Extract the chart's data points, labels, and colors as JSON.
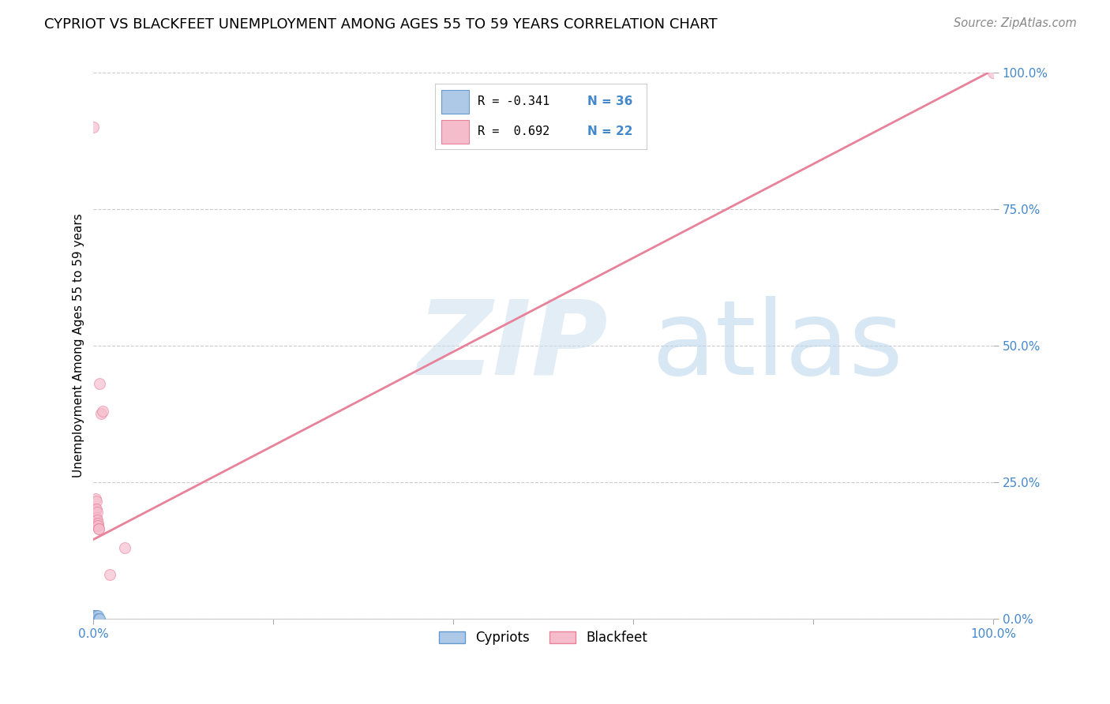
{
  "title": "CYPRIOT VS BLACKFEET UNEMPLOYMENT AMONG AGES 55 TO 59 YEARS CORRELATION CHART",
  "source": "Source: ZipAtlas.com",
  "ylabel": "Unemployment Among Ages 55 to 59 years",
  "xlim": [
    0,
    1.0
  ],
  "ylim": [
    0,
    1.0
  ],
  "ytick_positions": [
    0.0,
    0.25,
    0.5,
    0.75,
    1.0
  ],
  "ytick_labels": [
    "0.0%",
    "25.0%",
    "50.0%",
    "75.0%",
    "100.0%"
  ],
  "xtick_positions": [
    0.0,
    0.2,
    0.4,
    0.6,
    0.8,
    1.0
  ],
  "xtick_labels": [
    "0.0%",
    "",
    "",
    "",
    "",
    "100.0%"
  ],
  "grid_color": "#cccccc",
  "background_color": "#ffffff",
  "cypriot_color": "#aec9e8",
  "blackfeet_color": "#f5bccb",
  "cypriot_edge_color": "#6699cc",
  "blackfeet_edge_color": "#e8819a",
  "trend_blackfeet_color": "#e8819a",
  "tick_color": "#4488cc",
  "watermark_color": "#d0e5f5",
  "cypriot_points": [
    [
      0.0,
      0.0
    ],
    [
      0.0,
      0.0
    ],
    [
      0.0,
      0.0
    ],
    [
      0.0,
      0.0
    ],
    [
      0.0,
      0.0
    ],
    [
      0.0,
      0.0
    ],
    [
      0.0,
      0.0
    ],
    [
      0.0,
      0.0
    ],
    [
      0.0,
      0.0
    ],
    [
      0.0,
      0.0
    ],
    [
      0.0,
      0.0
    ],
    [
      0.0,
      0.0
    ],
    [
      0.0,
      0.0
    ],
    [
      0.0,
      0.0
    ],
    [
      0.0,
      0.0
    ],
    [
      0.0,
      0.0
    ],
    [
      0.0,
      0.005
    ],
    [
      0.0,
      0.005
    ],
    [
      0.002,
      0.0
    ],
    [
      0.002,
      0.0
    ],
    [
      0.002,
      0.0
    ],
    [
      0.002,
      0.005
    ],
    [
      0.002,
      0.005
    ],
    [
      0.003,
      0.0
    ],
    [
      0.003,
      0.0
    ],
    [
      0.003,
      0.0
    ],
    [
      0.004,
      0.0
    ],
    [
      0.004,
      0.0
    ],
    [
      0.004,
      0.005
    ],
    [
      0.005,
      0.0
    ],
    [
      0.005,
      0.0
    ],
    [
      0.005,
      0.005
    ],
    [
      0.006,
      0.0
    ],
    [
      0.006,
      0.0
    ],
    [
      0.007,
      0.0
    ],
    [
      0.007,
      0.0
    ]
  ],
  "blackfeet_points": [
    [
      0.0,
      0.9
    ],
    [
      0.002,
      0.22
    ],
    [
      0.002,
      0.2
    ],
    [
      0.003,
      0.215
    ],
    [
      0.003,
      0.2
    ],
    [
      0.003,
      0.185
    ],
    [
      0.003,
      0.175
    ],
    [
      0.003,
      0.175
    ],
    [
      0.004,
      0.195
    ],
    [
      0.004,
      0.18
    ],
    [
      0.004,
      0.17
    ],
    [
      0.004,
      0.17
    ],
    [
      0.005,
      0.175
    ],
    [
      0.005,
      0.17
    ],
    [
      0.006,
      0.165
    ],
    [
      0.006,
      0.165
    ],
    [
      0.007,
      0.43
    ],
    [
      0.008,
      0.375
    ],
    [
      0.01,
      0.38
    ],
    [
      0.018,
      0.08
    ],
    [
      0.035,
      0.13
    ],
    [
      1.0,
      1.0
    ]
  ],
  "blackfeet_trend_x": [
    0.0,
    1.0
  ],
  "blackfeet_trend_y": [
    0.145,
    1.005
  ],
  "marker_size": 100,
  "marker_alpha": 0.65,
  "title_fontsize": 13,
  "axis_label_fontsize": 11,
  "tick_fontsize": 11,
  "legend_fontsize": 12,
  "source_fontsize": 10.5
}
